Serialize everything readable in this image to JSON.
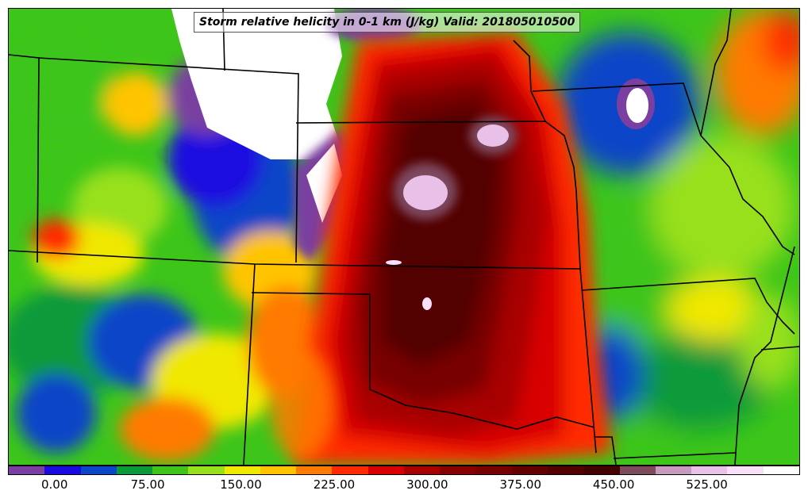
{
  "title": "Storm relative helicity in 0-1 km (J/kg) Valid: 201805010500",
  "map": {
    "variable": "Storm relative helicity 0-1 km",
    "units": "J/kg",
    "valid_time": "201805010500",
    "region": "Central United States"
  },
  "colorbar": {
    "colors": [
      "#7a3fa0",
      "#1a0ae0",
      "#0b45c8",
      "#0a9a3a",
      "#3dc51a",
      "#98e01a",
      "#f0e800",
      "#ffc400",
      "#ff7a00",
      "#ff2a00",
      "#d80000",
      "#a80000",
      "#880000",
      "#780000",
      "#640000",
      "#520000",
      "#440000",
      "#7d4a5e",
      "#c79ac0",
      "#e8c0e8",
      "#f8e0f8",
      "#ffffff"
    ],
    "tick_labels": [
      "0.00",
      "75.00",
      "150.00",
      "225.00",
      "300.00",
      "375.00",
      "450.00",
      "525.00"
    ],
    "min": -37.5,
    "max": 600,
    "step": 25
  }
}
